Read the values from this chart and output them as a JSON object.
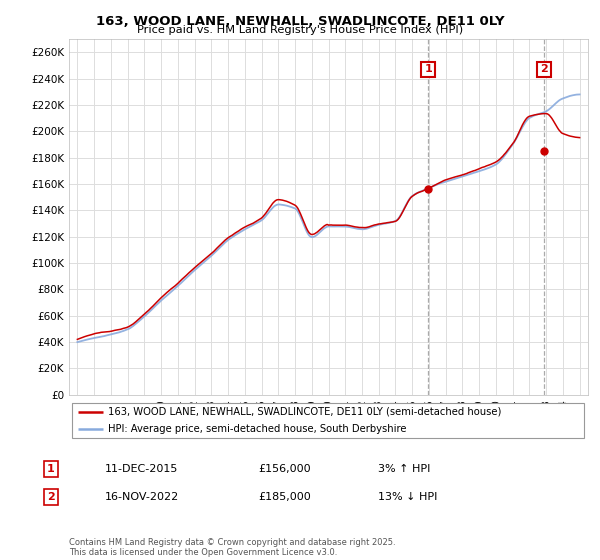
{
  "title": "163, WOOD LANE, NEWHALL, SWADLINCOTE, DE11 0LY",
  "subtitle": "Price paid vs. HM Land Registry's House Price Index (HPI)",
  "legend_line1": "163, WOOD LANE, NEWHALL, SWADLINCOTE, DE11 0LY (semi-detached house)",
  "legend_line2": "HPI: Average price, semi-detached house, South Derbyshire",
  "footnote": "Contains HM Land Registry data © Crown copyright and database right 2025.\nThis data is licensed under the Open Government Licence v3.0.",
  "point1_x": 2015.95,
  "point1_y": 156000,
  "point2_x": 2022.88,
  "point2_y": 185000,
  "ylim": [
    0,
    270000
  ],
  "xlim": [
    1994.5,
    2025.5
  ],
  "red_color": "#cc0000",
  "blue_color": "#88aadd",
  "grid_color": "#dddddd",
  "vline_color": "#aaaaaa"
}
